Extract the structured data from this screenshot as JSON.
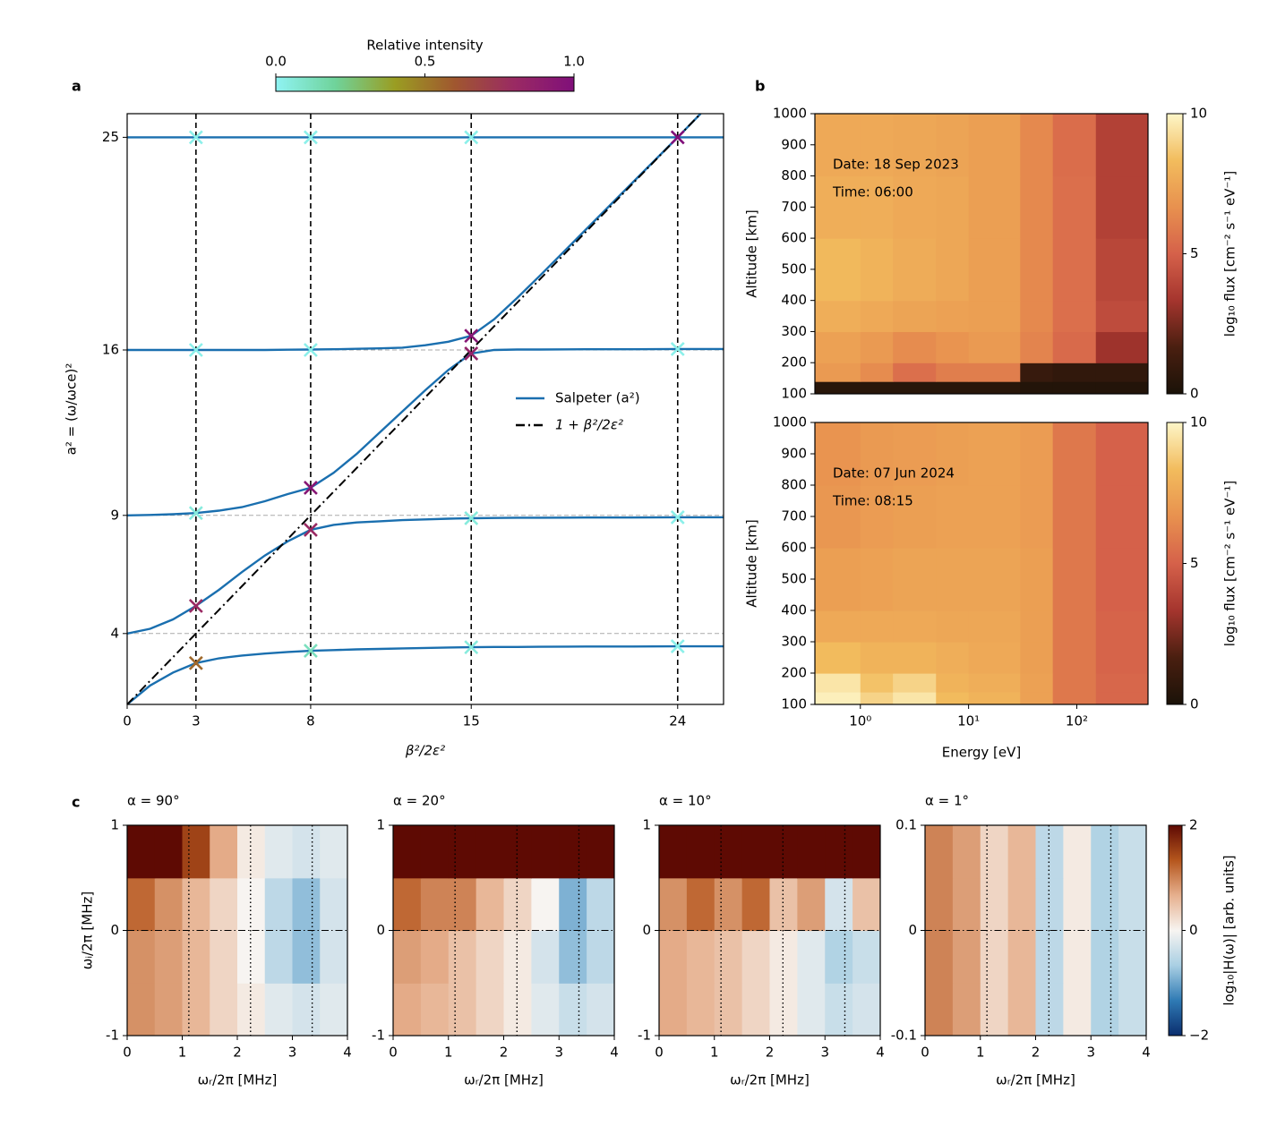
{
  "chart_data": [
    {
      "type": "line",
      "panel_label": "a",
      "x": [
        0,
        1,
        2,
        3,
        4,
        5,
        6,
        7,
        8,
        9,
        10,
        11,
        12,
        13,
        14,
        15,
        16,
        17,
        18,
        20,
        22,
        24,
        25,
        26
      ],
      "series": [
        {
          "name": "Salpeter (a²)",
          "color": "#1a6faf",
          "values": [
            1,
            1.8,
            2.35,
            2.75,
            2.95,
            3.07,
            3.15,
            3.22,
            3.27,
            3.3,
            3.33,
            3.35,
            3.37,
            3.39,
            3.41,
            3.42,
            3.43,
            3.43,
            3.44,
            3.45,
            3.45,
            3.46,
            3.46,
            3.46
          ]
        },
        {
          "color": "#1a6faf",
          "values": [
            4,
            4.2,
            4.6,
            5.17,
            5.85,
            6.6,
            7.3,
            7.9,
            8.39,
            8.6,
            8.7,
            8.75,
            8.8,
            8.83,
            8.86,
            8.88,
            8.89,
            8.9,
            8.9,
            8.91,
            8.91,
            8.92,
            8.92,
            8.92
          ]
        },
        {
          "color": "#1a6faf",
          "values": [
            9,
            9.02,
            9.05,
            9.1,
            9.2,
            9.35,
            9.6,
            9.9,
            10.17,
            10.8,
            11.6,
            12.5,
            13.4,
            14.3,
            15.15,
            15.85,
            16,
            16.02,
            16.02,
            16.03,
            16.03,
            16.04,
            16.04,
            16.04
          ]
        },
        {
          "color": "#1a6faf",
          "values": [
            16,
            16,
            16,
            16,
            16,
            16,
            16,
            16.01,
            16.02,
            16.03,
            16.05,
            16.07,
            16.1,
            16.2,
            16.35,
            16.6,
            17.3,
            18.2,
            19.15,
            21.1,
            23.05,
            25,
            26,
            null
          ]
        },
        {
          "color": "#1a6faf",
          "values": [
            25,
            25,
            25,
            25,
            25,
            25,
            25,
            25,
            25,
            25,
            25,
            25,
            25,
            25,
            25,
            25,
            25,
            25,
            25,
            25,
            25,
            25,
            25,
            25
          ]
        },
        {
          "name": "1 + β²/2ε²",
          "color": "#000000",
          "style": "dashdot",
          "values": [
            1,
            2,
            3,
            4,
            5,
            6,
            7,
            8,
            9,
            10,
            11,
            12,
            13,
            14,
            15,
            16,
            17,
            18,
            19,
            21,
            23,
            25,
            26,
            null
          ]
        }
      ],
      "xlim": [
        0,
        26
      ],
      "ylim": [
        1,
        26
      ],
      "xticks": [
        0,
        3,
        8,
        15,
        24
      ],
      "yticks": [
        4,
        9,
        16,
        25
      ],
      "xlabel": "β²/2ε²",
      "ylabel": "a² = (ω/ωce)²",
      "vlines": [
        3,
        8,
        15,
        24
      ],
      "hlines": [
        4,
        9,
        16
      ],
      "legend": "center right",
      "markers": {
        "x": [
          3,
          3,
          3,
          3,
          3,
          8,
          8,
          8,
          8,
          8,
          15,
          15,
          15,
          15,
          15,
          24,
          24,
          24,
          24
        ],
        "y": [
          2.75,
          5.17,
          9.1,
          16,
          25,
          3.27,
          8.39,
          10.17,
          16,
          25,
          3.42,
          8.88,
          15.85,
          16.6,
          25,
          3.46,
          8.92,
          16.04,
          25
        ],
        "intensity": [
          0.55,
          0.8,
          0.05,
          0.02,
          0.02,
          0.12,
          0.8,
          0.95,
          0.02,
          0.02,
          0.05,
          0.05,
          0.85,
          0.95,
          0.02,
          0.02,
          0.02,
          0.02,
          1.0
        ]
      },
      "zlim": [
        0,
        1
      ],
      "colormap": [
        "#8ff3f3",
        "#6fd39a",
        "#9a9d22",
        "#a0572f",
        "#9a2a63",
        "#800f7a"
      ],
      "colorbar": {
        "label": "Relative intensity",
        "ticks": [
          {
            "value": 0,
            "label": "0.0"
          },
          0.5,
          {
            "value": 1,
            "label": "1.0"
          }
        ]
      }
    },
    {
      "type": "heatmap",
      "panel_label": "b",
      "xlog": true,
      "x_edges": [
        0.38,
        1,
        2,
        5,
        10,
        30,
        60,
        150,
        455
      ],
      "y_edges": [
        100,
        140,
        200,
        300,
        400,
        600,
        800,
        1000
      ],
      "z": [
        [
          0.5,
          0.5,
          0.5,
          0.5,
          0.5,
          0.3,
          0.3,
          0.3
        ],
        [
          7,
          6.5,
          5.5,
          6,
          6,
          1,
          0.8,
          0.8
        ],
        [
          7.3,
          7,
          6.5,
          6.8,
          7,
          6.2,
          5.3,
          3.2
        ],
        [
          7.8,
          7.6,
          7.4,
          7.3,
          7.2,
          6.4,
          5.5,
          4.2
        ],
        [
          8.2,
          8,
          7.7,
          7.5,
          7.2,
          6.4,
          5.5,
          4
        ],
        [
          7.8,
          7.8,
          7.6,
          7.5,
          7.2,
          6.4,
          5.5,
          3.8
        ],
        [
          7.6,
          7.6,
          7.5,
          7.4,
          7.2,
          6.4,
          5.4,
          3.8
        ]
      ],
      "xlim": [
        0.38,
        455
      ],
      "ylim": [
        100,
        1000
      ],
      "yticks": [
        100,
        200,
        300,
        400,
        500,
        600,
        700,
        800,
        900,
        1000
      ],
      "ylabel": "Altitude [km]",
      "annotations": [
        "Date: 18 Sep 2023",
        "Time: 06:00"
      ],
      "zlim": [
        0,
        10
      ],
      "colormap": [
        "#1a1208",
        "#4a1f10",
        "#a5352e",
        "#d5614a",
        "#e8914f",
        "#f2bc5d",
        "#fdf6c8"
      ],
      "colorbar": {
        "label": "log₁₀ flux [cm⁻² s⁻¹ eV⁻¹]",
        "ticks": [
          0,
          5,
          10
        ]
      }
    },
    {
      "type": "heatmap",
      "xlog": true,
      "x_edges": [
        0.38,
        1,
        2,
        5,
        10,
        30,
        60,
        150,
        455
      ],
      "y_edges": [
        100,
        140,
        200,
        300,
        400,
        600,
        800,
        1000
      ],
      "z": [
        [
          9.8,
          9,
          9.5,
          8.3,
          8,
          7.3,
          5.8,
          5.2
        ],
        [
          9.5,
          8.5,
          9,
          8,
          7.8,
          7.3,
          5.8,
          5.2
        ],
        [
          8.3,
          8,
          8,
          7.8,
          7.6,
          7.2,
          5.8,
          5.1
        ],
        [
          7.6,
          7.6,
          7.6,
          7.5,
          7.5,
          7.2,
          5.8,
          5.1
        ],
        [
          7.2,
          7.3,
          7.4,
          7.4,
          7.4,
          7.2,
          5.8,
          5
        ],
        [
          6.9,
          7.1,
          7.2,
          7.3,
          7.3,
          7.1,
          5.8,
          5
        ],
        [
          6.8,
          7,
          7.1,
          7.2,
          7.3,
          7.1,
          5.8,
          5
        ]
      ],
      "xlim": [
        0.38,
        455
      ],
      "ylim": [
        100,
        1000
      ],
      "xticks": [
        {
          "value": 1,
          "label": "10⁰"
        },
        {
          "value": 10,
          "label": "10¹"
        },
        {
          "value": 100,
          "label": "10²"
        }
      ],
      "yticks": [
        100,
        200,
        300,
        400,
        500,
        600,
        700,
        800,
        900,
        1000
      ],
      "xlabel": "Energy [eV]",
      "ylabel": "Altitude [km]",
      "annotations": [
        "Date: 07 Jun 2024",
        "Time: 08:15"
      ],
      "zlim": [
        0,
        10
      ],
      "colormap": [
        "#1a1208",
        "#4a1f10",
        "#a5352e",
        "#d5614a",
        "#e8914f",
        "#f2bc5d",
        "#fdf6c8"
      ],
      "colorbar": {
        "label": "log₁₀ flux [cm⁻² s⁻¹ eV⁻¹]",
        "ticks": [
          0,
          5,
          10
        ]
      }
    },
    {
      "type": "heatmap",
      "panel_label": "c",
      "title": "α = 90°",
      "x_edges": [
        0,
        0.5,
        1,
        1.5,
        2,
        2.5,
        3,
        3.5,
        4
      ],
      "y_edges": [
        -1,
        -0.5,
        0,
        0.5,
        1
      ],
      "z": [
        [
          0.9,
          0.8,
          0.6,
          0.3,
          0.1,
          -0.2,
          -0.3,
          -0.2
        ],
        [
          0.9,
          0.8,
          0.6,
          0.3,
          0,
          -0.5,
          -0.8,
          -0.3
        ],
        [
          1.2,
          0.9,
          0.6,
          0.3,
          0,
          -0.5,
          -0.8,
          -0.3
        ],
        [
          2,
          2,
          1.5,
          0.7,
          0.1,
          -0.2,
          -0.3,
          -0.2
        ]
      ],
      "xlim": [
        0,
        4
      ],
      "ylim": [
        -1,
        1
      ],
      "xticks": [
        0,
        1,
        2,
        3,
        4
      ],
      "yticks": [
        -1,
        0,
        1
      ],
      "xlabel": "ωᵣ/2π [MHz]",
      "ylabel": "ωᵢ/2π [MHz]",
      "vlines": [
        1.12,
        2.24,
        3.36
      ],
      "hlines": [
        0
      ],
      "zlim": [
        -2,
        2
      ],
      "colormap": [
        "#0a2d6e",
        "#2f7ab4",
        "#a9cfe3",
        "#f7f4f1",
        "#e6b08e",
        "#b5561d",
        "#5e0a03"
      ]
    },
    {
      "type": "heatmap",
      "title": "α = 20°",
      "x_edges": [
        0,
        0.5,
        1,
        1.5,
        2,
        2.5,
        3,
        3.5,
        4
      ],
      "y_edges": [
        -1,
        -0.5,
        0,
        0.5,
        1
      ],
      "z": [
        [
          0.7,
          0.6,
          0.5,
          0.3,
          0.1,
          -0.2,
          -0.4,
          -0.3
        ],
        [
          0.8,
          0.7,
          0.5,
          0.3,
          0.1,
          -0.3,
          -0.8,
          -0.5
        ],
        [
          1.2,
          1,
          1,
          0.6,
          0.3,
          0,
          -0.9,
          -0.5
        ],
        [
          2,
          2,
          2,
          2,
          2,
          2,
          2,
          2
        ]
      ],
      "xlim": [
        0,
        4
      ],
      "ylim": [
        -1,
        1
      ],
      "xticks": [
        0,
        1,
        2,
        3,
        4
      ],
      "yticks": [
        -1,
        0,
        1
      ],
      "xlabel": "ωᵣ/2π [MHz]",
      "vlines": [
        1.12,
        2.24,
        3.36
      ],
      "hlines": [
        0
      ],
      "zlim": [
        -2,
        2
      ],
      "colormap": [
        "#0a2d6e",
        "#2f7ab4",
        "#a9cfe3",
        "#f7f4f1",
        "#e6b08e",
        "#b5561d",
        "#5e0a03"
      ]
    },
    {
      "type": "heatmap",
      "title": "α = 10°",
      "x_edges": [
        0,
        0.5,
        1,
        1.5,
        2,
        2.5,
        3,
        3.5,
        4
      ],
      "y_edges": [
        -1,
        -0.5,
        0,
        0.5,
        1
      ],
      "z": [
        [
          0.7,
          0.6,
          0.5,
          0.3,
          0.1,
          -0.2,
          -0.4,
          -0.3
        ],
        [
          0.7,
          0.6,
          0.5,
          0.3,
          0.1,
          -0.2,
          -0.6,
          -0.4
        ],
        [
          0.9,
          1.2,
          0.9,
          1.2,
          0.5,
          0.8,
          -0.3,
          0.5
        ],
        [
          2,
          2,
          2,
          2,
          2,
          2,
          2,
          2
        ]
      ],
      "xlim": [
        0,
        4
      ],
      "ylim": [
        -1,
        1
      ],
      "xticks": [
        0,
        1,
        2,
        3,
        4
      ],
      "yticks": [
        -1,
        0,
        1
      ],
      "xlabel": "ωᵣ/2π [MHz]",
      "vlines": [
        1.12,
        2.24,
        3.36
      ],
      "hlines": [
        0
      ],
      "zlim": [
        -2,
        2
      ],
      "colormap": [
        "#0a2d6e",
        "#2f7ab4",
        "#a9cfe3",
        "#f7f4f1",
        "#e6b08e",
        "#b5561d",
        "#5e0a03"
      ]
    },
    {
      "type": "heatmap",
      "title": "α = 1°",
      "x_edges": [
        0,
        0.5,
        1,
        1.5,
        2,
        2.5,
        3,
        3.5,
        4
      ],
      "y_edges": [
        -0.1,
        -0.05,
        0,
        0.05,
        0.1
      ],
      "z": [
        [
          1,
          0.8,
          0.3,
          0.6,
          -0.5,
          0.1,
          -0.6,
          -0.4
        ],
        [
          1,
          0.8,
          0.3,
          0.6,
          -0.5,
          0.1,
          -0.6,
          -0.4
        ],
        [
          1,
          0.8,
          0.3,
          0.6,
          -0.5,
          0.1,
          -0.6,
          -0.4
        ],
        [
          1,
          0.8,
          0.3,
          0.6,
          -0.5,
          0.1,
          -0.6,
          -0.4
        ]
      ],
      "xlim": [
        0,
        4
      ],
      "ylim": [
        -0.1,
        0.1
      ],
      "xticks": [
        0,
        1,
        2,
        3,
        4
      ],
      "yticks": [
        -0.1,
        0,
        0.1
      ],
      "xlabel": "ωᵣ/2π [MHz]",
      "vlines": [
        1.12,
        2.24,
        3.36
      ],
      "hlines": [
        0
      ],
      "zlim": [
        -2,
        2
      ],
      "colormap": [
        "#0a2d6e",
        "#2f7ab4",
        "#a9cfe3",
        "#f7f4f1",
        "#e6b08e",
        "#b5561d",
        "#5e0a03"
      ],
      "colorbar": {
        "label": "log₁₀|H(ω)| [arb. units]",
        "ticks": [
          {
            "value": -2,
            "label": "−2"
          },
          0,
          2
        ]
      }
    }
  ]
}
